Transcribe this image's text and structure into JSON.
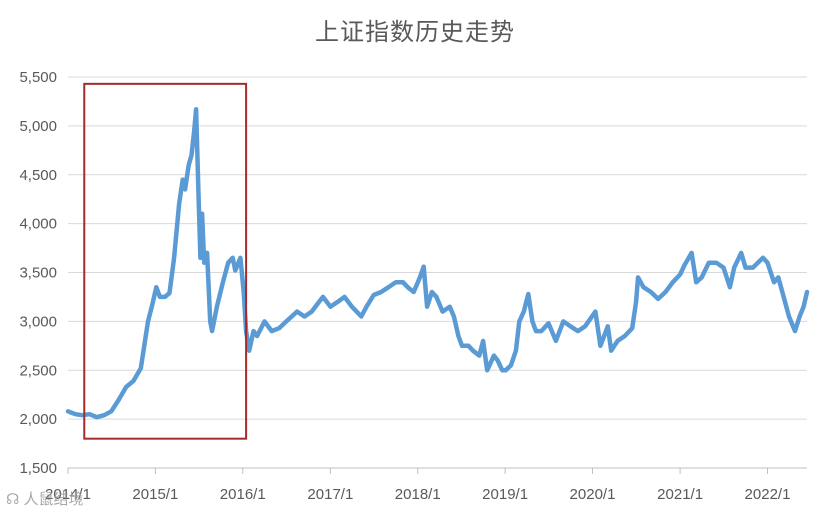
{
  "chart_data": {
    "type": "line",
    "title": "上证指数历史走势",
    "xlabel": "",
    "ylabel": "",
    "ylim": [
      1500,
      5500
    ],
    "y_ticks": [
      1500,
      2000,
      2500,
      3000,
      3500,
      4000,
      4500,
      5000,
      5500
    ],
    "y_tick_labels": [
      "1,500",
      "2,000",
      "2,500",
      "3,000",
      "3,500",
      "4,000",
      "4,500",
      "5,000",
      "5,500"
    ],
    "x_range": [
      "2014-01-01",
      "2022-06-15"
    ],
    "x_ticks": [
      "2014-01-01",
      "2015-01-01",
      "2016-01-01",
      "2017-01-01",
      "2018-01-01",
      "2019-01-01",
      "2020-01-01",
      "2021-01-01",
      "2022-01-01"
    ],
    "x_tick_labels": [
      "2014/1",
      "2015/1",
      "2016/1",
      "2017/1",
      "2018/1",
      "2019/1",
      "2020/1",
      "2021/1",
      "2022/1"
    ],
    "grid": true,
    "line_color": "#5b9bd5",
    "highlight_color": "#a52a2a",
    "highlight": {
      "x_start": "2014-03-10",
      "x_end": "2016-01-15",
      "y_start": 1800,
      "y_end": 5430
    },
    "series": [
      {
        "x": [
          "2014-01-01",
          "2014-02-01",
          "2014-03-01",
          "2014-04-01",
          "2014-05-01",
          "2014-06-01",
          "2014-07-01",
          "2014-08-01",
          "2014-09-01",
          "2014-10-01",
          "2014-11-01",
          "2014-12-01",
          "2014-12-20",
          "2015-01-05",
          "2015-01-20",
          "2015-02-10",
          "2015-03-01",
          "2015-03-20",
          "2015-04-10",
          "2015-04-25",
          "2015-05-05",
          "2015-05-20",
          "2015-06-01",
          "2015-06-12",
          "2015-06-20",
          "2015-06-30",
          "2015-07-08",
          "2015-07-15",
          "2015-07-24",
          "2015-08-05",
          "2015-08-18",
          "2015-08-26",
          "2015-09-15",
          "2015-10-10",
          "2015-11-01",
          "2015-11-20",
          "2015-12-01",
          "2015-12-22",
          "2016-01-05",
          "2016-01-15",
          "2016-01-28",
          "2016-02-15",
          "2016-03-01",
          "2016-04-01",
          "2016-05-01",
          "2016-06-01",
          "2016-07-01",
          "2016-08-15",
          "2016-09-15",
          "2016-10-15",
          "2016-11-15",
          "2016-12-01",
          "2017-01-01",
          "2017-02-01",
          "2017-03-01",
          "2017-04-01",
          "2017-05-10",
          "2017-06-01",
          "2017-07-01",
          "2017-08-01",
          "2017-09-01",
          "2017-10-01",
          "2017-11-01",
          "2017-11-20",
          "2017-12-15",
          "2018-01-10",
          "2018-01-26",
          "2018-02-09",
          "2018-03-01",
          "2018-03-20",
          "2018-04-15",
          "2018-05-15",
          "2018-06-01",
          "2018-06-20",
          "2018-07-05",
          "2018-08-01",
          "2018-08-20",
          "2018-09-15",
          "2018-10-01",
          "2018-10-18",
          "2018-11-15",
          "2018-12-01",
          "2018-12-20",
          "2019-01-03",
          "2019-01-25",
          "2019-02-15",
          "2019-03-01",
          "2019-03-20",
          "2019-04-08",
          "2019-04-25",
          "2019-05-10",
          "2019-06-01",
          "2019-07-01",
          "2019-08-01",
          "2019-09-01",
          "2019-10-01",
          "2019-11-01",
          "2019-12-01",
          "2020-01-13",
          "2020-02-03",
          "2020-03-05",
          "2020-03-19",
          "2020-04-15",
          "2020-05-15",
          "2020-06-15",
          "2020-07-01",
          "2020-07-09",
          "2020-08-01",
          "2020-09-01",
          "2020-10-01",
          "2020-11-01",
          "2020-12-01",
          "2021-01-01",
          "2021-01-20",
          "2021-02-18",
          "2021-03-09",
          "2021-04-01",
          "2021-05-01",
          "2021-06-01",
          "2021-07-01",
          "2021-07-28",
          "2021-08-15",
          "2021-09-13",
          "2021-10-01",
          "2021-11-01",
          "2021-12-13",
          "2022-01-01",
          "2022-01-28",
          "2022-02-15",
          "2022-03-15",
          "2022-04-01",
          "2022-04-26",
          "2022-05-15",
          "2022-06-01",
          "2022-06-15"
        ],
        "y": [
          2080,
          2050,
          2040,
          2050,
          2020,
          2040,
          2080,
          2200,
          2330,
          2390,
          2520,
          3000,
          3180,
          3350,
          3250,
          3250,
          3290,
          3650,
          4200,
          4450,
          4350,
          4600,
          4700,
          4950,
          5170,
          4300,
          3650,
          4100,
          3600,
          3700,
          3000,
          2900,
          3150,
          3400,
          3600,
          3650,
          3520,
          3650,
          3300,
          2900,
          2700,
          2900,
          2850,
          3000,
          2900,
          2930,
          3000,
          3100,
          3050,
          3100,
          3200,
          3250,
          3150,
          3200,
          3250,
          3150,
          3050,
          3150,
          3270,
          3300,
          3350,
          3400,
          3400,
          3350,
          3300,
          3450,
          3560,
          3150,
          3300,
          3250,
          3100,
          3150,
          3050,
          2850,
          2750,
          2750,
          2700,
          2650,
          2800,
          2500,
          2650,
          2600,
          2500,
          2500,
          2550,
          2700,
          3000,
          3100,
          3280,
          3000,
          2900,
          2900,
          2980,
          2800,
          3000,
          2950,
          2900,
          2950,
          3100,
          2750,
          2950,
          2700,
          2800,
          2850,
          2930,
          3200,
          3450,
          3350,
          3300,
          3230,
          3300,
          3400,
          3480,
          3580,
          3700,
          3400,
          3450,
          3600,
          3600,
          3550,
          3350,
          3550,
          3700,
          3550,
          3550,
          3650,
          3600,
          3400,
          3450,
          3200,
          3050,
          2900,
          3050,
          3150,
          3300
        ]
      }
    ]
  },
  "watermark_text": "人鼠结境"
}
